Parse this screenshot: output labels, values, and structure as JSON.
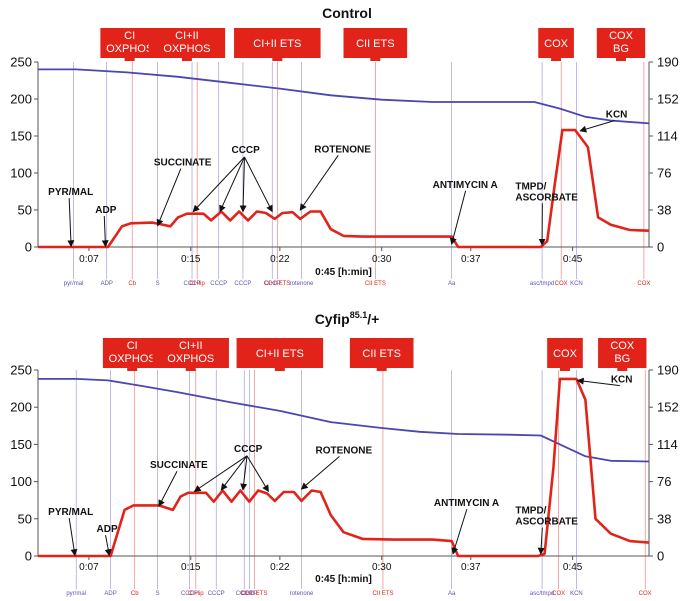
{
  "chart_data": [
    {
      "type": "line",
      "title": "Control",
      "title_sup": "",
      "title_after": "",
      "xlim_min": [
        3,
        51
      ],
      "ylim": [
        0,
        250
      ],
      "ylim_right": [
        0,
        190
      ],
      "y_ticks": [
        0,
        50,
        100,
        150,
        200,
        250
      ],
      "y_right_ticks": [
        "0",
        "38",
        "76",
        "114",
        "152",
        "190"
      ],
      "x_ticks": [
        {
          "v": 7,
          "label": "0:07"
        },
        {
          "v": 15,
          "label": "0:15"
        },
        {
          "v": 22,
          "label": "0:22"
        },
        {
          "v": 30,
          "label": "0:30"
        },
        {
          "v": 37,
          "label": "0:37"
        },
        {
          "v": 45,
          "label": "0:45"
        }
      ],
      "xlabel": "0:45 [h:min]",
      "grid": false,
      "series": [
        {
          "color": "#4b46b0",
          "points": [
            [
              3,
              240
            ],
            [
              6,
              240
            ],
            [
              8,
              238
            ],
            [
              10,
              236
            ],
            [
              14,
              230
            ],
            [
              18,
              222
            ],
            [
              22,
              214
            ],
            [
              26,
              205
            ],
            [
              30,
              199
            ],
            [
              34,
              196
            ],
            [
              38,
              196
            ],
            [
              40,
              196
            ],
            [
              42,
              196
            ],
            [
              44,
              187
            ],
            [
              46,
              176
            ],
            [
              48,
              171
            ],
            [
              51,
              167
            ]
          ]
        },
        {
          "color": "#e2231a",
          "points": [
            [
              3,
              0
            ],
            [
              7.5,
              0
            ],
            [
              8.5,
              0
            ],
            [
              9.6,
              28
            ],
            [
              10.3,
              32
            ],
            [
              12,
              33
            ],
            [
              13.4,
              28
            ],
            [
              14,
              40
            ],
            [
              14.7,
              45
            ],
            [
              16,
              45
            ],
            [
              16.6,
              36
            ],
            [
              17.4,
              48
            ],
            [
              18.1,
              36
            ],
            [
              18.8,
              48
            ],
            [
              19.5,
              36
            ],
            [
              20.2,
              48
            ],
            [
              20.9,
              46
            ],
            [
              21.6,
              38
            ],
            [
              22.2,
              46
            ],
            [
              23,
              47
            ],
            [
              23.6,
              38
            ],
            [
              24.4,
              48
            ],
            [
              25.2,
              48
            ],
            [
              26,
              24
            ],
            [
              27,
              15
            ],
            [
              28.5,
              14
            ],
            [
              31,
              14
            ],
            [
              34,
              14
            ],
            [
              35.5,
              14
            ],
            [
              36,
              0
            ],
            [
              37,
              0
            ],
            [
              40,
              0
            ],
            [
              42.5,
              0
            ],
            [
              43,
              8
            ],
            [
              43.6,
              85
            ],
            [
              44.2,
              158
            ],
            [
              45.2,
              158
            ],
            [
              46.2,
              135
            ],
            [
              47,
              40
            ],
            [
              48,
              30
            ],
            [
              49.5,
              23
            ],
            [
              51,
              22
            ]
          ]
        }
      ],
      "phases": [
        {
          "lines": [
            "CI",
            "OXPHOS"
          ],
          "x": 10.2,
          "w": 4.6
        },
        {
          "lines": [
            "CI+II",
            "OXPHOS"
          ],
          "x": 14.7,
          "w": 6
        },
        {
          "lines": [
            "CI+II ETS"
          ],
          "x": 21.8,
          "w": 6.8
        },
        {
          "lines": [
            "CII ETS"
          ],
          "x": 29.5,
          "w": 5
        },
        {
          "lines": [
            "COX"
          ],
          "x": 43.7,
          "w": 2.8
        },
        {
          "lines": [
            "COX",
            "BG"
          ],
          "x": 48.8,
          "w": 3.8
        }
      ],
      "markers": [
        {
          "x": 5.8,
          "label": "pyr/mal",
          "color": "#5a56b8"
        },
        {
          "x": 8.4,
          "label": "ADP",
          "color": "#5a56b8"
        },
        {
          "x": 10.4,
          "label": "Cb",
          "color": "#e2231a"
        },
        {
          "x": 12.4,
          "label": "S",
          "color": "#5a56b8"
        },
        {
          "x": 15.1,
          "label": "CCCP",
          "color": "#5a56b8"
        },
        {
          "x": 15.5,
          "label": "CI+lip",
          "color": "#e2231a"
        },
        {
          "x": 17.2,
          "label": "CCCP",
          "color": "#5a56b8"
        },
        {
          "x": 19.1,
          "label": "CCCP",
          "color": "#5a56b8"
        },
        {
          "x": 21.4,
          "label": "CCCP",
          "color": "#5a56b8"
        },
        {
          "x": 21.8,
          "label": "CI+II ETS",
          "color": "#e2231a"
        },
        {
          "x": 23.7,
          "label": "rotenone",
          "color": "#5a56b8"
        },
        {
          "x": 29.5,
          "label": "CII ETS",
          "color": "#e2231a"
        },
        {
          "x": 35.5,
          "label": "Aa",
          "color": "#5a56b8"
        },
        {
          "x": 42.6,
          "label": "asc/tmpd",
          "color": "#5a56b8"
        },
        {
          "x": 44.1,
          "label": "COX",
          "color": "#e2231a"
        },
        {
          "x": 45.3,
          "label": "KCN",
          "color": "#5a56b8"
        },
        {
          "x": 50.6,
          "label": "COX",
          "color": "#e2231a"
        }
      ],
      "annotations": [
        {
          "lines": [
            "PYR/MAL"
          ],
          "tx": 3.8,
          "ty": 70,
          "ax": 5.6,
          "ay": 1
        },
        {
          "lines": [
            "ADP"
          ],
          "tx": 7.5,
          "ty": 46,
          "ax": 8.3,
          "ay": 1
        },
        {
          "lines": [
            "SUCCINATE"
          ],
          "tx": 12.1,
          "ty": 110,
          "ax": 12.4,
          "ay": 29
        },
        {
          "lines": [
            "CCCP"
          ],
          "tx": 18.2,
          "ty": 127,
          "ax": null,
          "ay": null
        },
        {
          "lines": [
            "ROTENONE"
          ],
          "tx": 24.7,
          "ty": 128,
          "ax": 23.6,
          "ay": 50
        },
        {
          "lines": [
            "ANTIMYCIN A"
          ],
          "tx": 34,
          "ty": 80,
          "ax": 35.5,
          "ay": 4
        },
        {
          "lines": [
            "TMPD/",
            "ASCORBATE"
          ],
          "tx": 40.5,
          "ty": 78,
          "ax": 42.6,
          "ay": 3
        },
        {
          "lines": [
            "KCN"
          ],
          "tx": 47.6,
          "ty": 175,
          "ax": 45.6,
          "ay": 157
        }
      ],
      "cccp_targets": [
        [
          15.2,
          48
        ],
        [
          17.3,
          48
        ],
        [
          19.1,
          48
        ],
        [
          21.4,
          48
        ]
      ]
    },
    {
      "type": "line",
      "title": "Cyfip",
      "title_sup": "85.1",
      "title_after": "/+",
      "xlim_min": [
        3,
        51
      ],
      "ylim": [
        0,
        250
      ],
      "ylim_right": [
        0,
        190
      ],
      "y_ticks": [
        0,
        50,
        100,
        150,
        200,
        250
      ],
      "y_right_ticks": [
        "0",
        "38",
        "76",
        "114",
        "152",
        "190"
      ],
      "x_ticks": [
        {
          "v": 7,
          "label": "0:07"
        },
        {
          "v": 15,
          "label": "0:15"
        },
        {
          "v": 22,
          "label": "0:22"
        },
        {
          "v": 30,
          "label": "0:30"
        },
        {
          "v": 37,
          "label": "0:37"
        },
        {
          "v": 45,
          "label": "0:45"
        }
      ],
      "xlabel": "0:45 [h:min]",
      "grid": false,
      "series": [
        {
          "color": "#4b46b0",
          "points": [
            [
              3,
              238
            ],
            [
              6,
              238
            ],
            [
              8.5,
              236
            ],
            [
              11,
              229
            ],
            [
              14,
              220
            ],
            [
              18,
              207
            ],
            [
              22,
              195
            ],
            [
              26,
              180
            ],
            [
              30,
              172
            ],
            [
              33,
              167
            ],
            [
              36,
              164
            ],
            [
              40,
              163
            ],
            [
              42.5,
              162
            ],
            [
              44,
              150
            ],
            [
              46,
              134
            ],
            [
              48,
              128
            ],
            [
              51,
              127
            ]
          ]
        },
        {
          "color": "#e2231a",
          "points": [
            [
              3,
              0
            ],
            [
              7.8,
              0
            ],
            [
              8.7,
              0
            ],
            [
              9.8,
              62
            ],
            [
              10.5,
              68
            ],
            [
              12.5,
              68
            ],
            [
              13.6,
              62
            ],
            [
              14.2,
              80
            ],
            [
              14.8,
              85
            ],
            [
              16.2,
              85
            ],
            [
              16.8,
              73
            ],
            [
              17.5,
              88
            ],
            [
              18.2,
              73
            ],
            [
              18.9,
              88
            ],
            [
              19.6,
              73
            ],
            [
              20.3,
              88
            ],
            [
              21,
              84
            ],
            [
              21.6,
              74
            ],
            [
              22.3,
              86
            ],
            [
              23.1,
              86
            ],
            [
              23.7,
              74
            ],
            [
              24.5,
              88
            ],
            [
              25.2,
              86
            ],
            [
              26,
              55
            ],
            [
              27,
              32
            ],
            [
              28.5,
              23
            ],
            [
              31,
              22
            ],
            [
              34,
              22
            ],
            [
              35.5,
              20
            ],
            [
              36,
              0
            ],
            [
              37,
              0
            ],
            [
              40,
              0
            ],
            [
              42.3,
              0
            ],
            [
              42.8,
              3
            ],
            [
              43.5,
              120
            ],
            [
              44,
              238
            ],
            [
              45.3,
              238
            ],
            [
              46,
              210
            ],
            [
              46.8,
              50
            ],
            [
              48,
              30
            ],
            [
              49.5,
              20
            ],
            [
              51,
              18
            ]
          ]
        }
      ],
      "phases": [
        {
          "lines": [
            "CI",
            "OXPHOS"
          ],
          "x": 10.4,
          "w": 4.6
        },
        {
          "lines": [
            "CI+II",
            "OXPHOS"
          ],
          "x": 15,
          "w": 6
        },
        {
          "lines": [
            "CI+II ETS"
          ],
          "x": 22,
          "w": 6.8
        },
        {
          "lines": [
            "CII ETS"
          ],
          "x": 30,
          "w": 5
        },
        {
          "lines": [
            "COX"
          ],
          "x": 44.4,
          "w": 2.8
        },
        {
          "lines": [
            "COX",
            "BG"
          ],
          "x": 48.9,
          "w": 3.8
        }
      ],
      "markers": [
        {
          "x": 6,
          "label": "pyr/mal",
          "color": "#5a56b8"
        },
        {
          "x": 8.7,
          "label": "ADP",
          "color": "#5a56b8"
        },
        {
          "x": 10.6,
          "label": "Cb",
          "color": "#e2231a"
        },
        {
          "x": 12.4,
          "label": "S",
          "color": "#5a56b8"
        },
        {
          "x": 14.9,
          "label": "CCCP",
          "color": "#5a56b8"
        },
        {
          "x": 15.4,
          "label": "CI+lip",
          "color": "#e2231a"
        },
        {
          "x": 17,
          "label": "CCCP",
          "color": "#5a56b8"
        },
        {
          "x": 19.2,
          "label": "CCCP",
          "color": "#5a56b8"
        },
        {
          "x": 19.6,
          "label": "CCCP",
          "color": "#5a56b8"
        },
        {
          "x": 20,
          "label": "CI+II ETS",
          "color": "#e2231a"
        },
        {
          "x": 23.7,
          "label": "rotenone",
          "color": "#5a56b8"
        },
        {
          "x": 30.1,
          "label": "CII ETS",
          "color": "#e2231a"
        },
        {
          "x": 35.5,
          "label": "Aa",
          "color": "#5a56b8"
        },
        {
          "x": 42.6,
          "label": "asc/tmpd",
          "color": "#5a56b8"
        },
        {
          "x": 43.9,
          "label": "COX",
          "color": "#e2231a"
        },
        {
          "x": 45.3,
          "label": "KCN",
          "color": "#5a56b8"
        },
        {
          "x": 50.7,
          "label": "COX",
          "color": "#e2231a"
        }
      ],
      "annotations": [
        {
          "lines": [
            "PYR/MAL"
          ],
          "tx": 3.8,
          "ty": 55,
          "ax": 5.9,
          "ay": 1
        },
        {
          "lines": [
            "ADP"
          ],
          "tx": 7.6,
          "ty": 32,
          "ax": 8.6,
          "ay": 1
        },
        {
          "lines": [
            "SUCCINATE"
          ],
          "tx": 11.8,
          "ty": 118,
          "ax": 12.5,
          "ay": 67
        },
        {
          "lines": [
            "CCCP"
          ],
          "tx": 18.4,
          "ty": 140,
          "ax": null,
          "ay": null
        },
        {
          "lines": [
            "ROTENONE"
          ],
          "tx": 24.8,
          "ty": 138,
          "ax": 23.7,
          "ay": 90
        },
        {
          "lines": [
            "ANTIMYCIN A"
          ],
          "tx": 34.1,
          "ty": 67,
          "ax": 35.6,
          "ay": 3
        },
        {
          "lines": [
            "TMPD/",
            "ASCORBATE"
          ],
          "tx": 40.5,
          "ty": 57,
          "ax": 42.5,
          "ay": 3
        },
        {
          "lines": [
            "KCN"
          ],
          "tx": 48,
          "ty": 233,
          "ax": 45.4,
          "ay": 236
        }
      ],
      "cccp_targets": [
        [
          15.3,
          87
        ],
        [
          17.4,
          89
        ],
        [
          19.1,
          89
        ],
        [
          21.1,
          87
        ]
      ]
    }
  ]
}
